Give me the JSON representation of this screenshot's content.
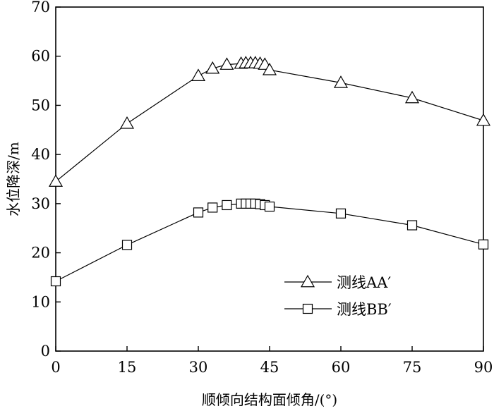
{
  "chart_data": {
    "type": "line",
    "title": "",
    "xlabel": "顺倾向结构面倾角/(°)",
    "ylabel": "水位降深/m",
    "xlim": [
      0,
      90
    ],
    "ylim": [
      0,
      70
    ],
    "xticks": [
      "0",
      "15",
      "30",
      "45",
      "60",
      "75",
      "90"
    ],
    "yticks": [
      "0",
      "10",
      "20",
      "30",
      "40",
      "50",
      "60",
      "70"
    ],
    "grid": false,
    "legend_position": "lower-left",
    "series": [
      {
        "name": "测线AA′",
        "marker": "triangle",
        "x": [
          0,
          15,
          30,
          33,
          36,
          39,
          40,
          41,
          42,
          43,
          44,
          45,
          60,
          75,
          90
        ],
        "y": [
          34.5,
          46.3,
          56.0,
          57.5,
          58.3,
          58.5,
          58.6,
          58.6,
          58.6,
          58.5,
          58.3,
          57.2,
          54.6,
          51.5,
          46.9
        ]
      },
      {
        "name": "测线BB′",
        "marker": "square",
        "x": [
          0,
          15,
          30,
          33,
          36,
          39,
          40,
          41,
          42,
          43,
          44,
          45,
          60,
          75,
          90
        ],
        "y": [
          14.2,
          21.6,
          28.2,
          29.2,
          29.7,
          30.0,
          30.0,
          30.0,
          30.0,
          29.9,
          29.7,
          29.4,
          28.0,
          25.6,
          21.7
        ]
      }
    ]
  }
}
